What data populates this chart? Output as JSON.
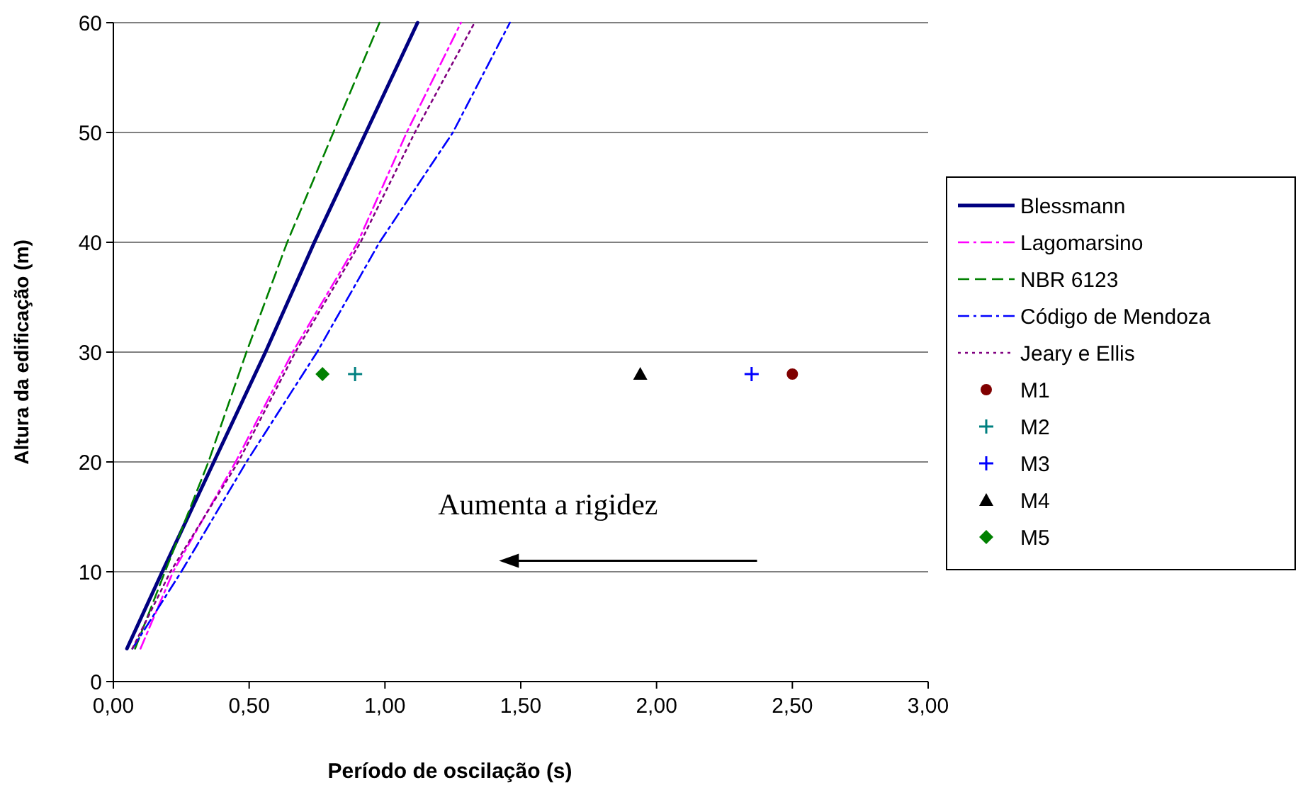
{
  "chart_data": {
    "type": "line",
    "xlabel": "Período de oscilação (s)",
    "ylabel": "Altura da edificação (m)",
    "xlim": [
      0,
      3
    ],
    "xticks": [
      {
        "value": 0,
        "label": "0,00"
      },
      {
        "value": 0.5,
        "label": "0,50"
      },
      {
        "value": 1,
        "label": "1,00"
      },
      {
        "value": 1.5,
        "label": "1,50"
      },
      {
        "value": 2,
        "label": "2,00"
      },
      {
        "value": 2.5,
        "label": "2,50"
      },
      {
        "value": 3,
        "label": "3,00"
      }
    ],
    "ylim": [
      0,
      60
    ],
    "yticks": [
      0,
      10,
      20,
      30,
      40,
      50,
      60
    ],
    "grid": "y",
    "legend": "right",
    "annotations": [
      "Aumenta a rigidez"
    ],
    "series": [
      {
        "name": "Blessmann",
        "color": "#000080",
        "line_style": "solid",
        "x": [
          0.05,
          0.18,
          0.37,
          0.56,
          0.74,
          0.93,
          1.12
        ],
        "values": [
          3,
          10,
          20,
          30,
          40,
          50,
          60
        ]
      },
      {
        "name": "Lagomarsino",
        "color": "#ff00ff",
        "line_style": "dashdot",
        "x": [
          0.1,
          0.22,
          0.45,
          0.66,
          0.9,
          1.08,
          1.28
        ],
        "values": [
          3,
          10,
          20,
          30,
          40,
          50,
          60
        ]
      },
      {
        "name": "NBR 6123",
        "color": "#008000",
        "line_style": "dashed",
        "x": [
          0.08,
          0.19,
          0.35,
          0.49,
          0.64,
          0.81,
          0.98
        ],
        "values": [
          3,
          10,
          20,
          30,
          40,
          50,
          60
        ]
      },
      {
        "name": "Código de Mendoza",
        "color": "#0000ff",
        "line_style": "dashdot",
        "x": [
          0.07,
          0.25,
          0.49,
          0.75,
          0.98,
          1.25,
          1.46
        ],
        "values": [
          3,
          10,
          20,
          30,
          40,
          50,
          60
        ]
      },
      {
        "name": "Jeary e Ellis",
        "color": "#800080",
        "line_style": "dotted",
        "x": [
          0.07,
          0.21,
          0.46,
          0.67,
          0.91,
          1.11,
          1.33
        ],
        "values": [
          3,
          10,
          20,
          30,
          40,
          50,
          60
        ]
      },
      {
        "name": "M1",
        "type": "scatter",
        "color": "#800000",
        "marker": "circle",
        "x": [
          2.5
        ],
        "values": [
          28
        ]
      },
      {
        "name": "M2",
        "type": "scatter",
        "color": "#008080",
        "marker": "cross",
        "x": [
          0.89
        ],
        "values": [
          28
        ]
      },
      {
        "name": "M3",
        "type": "scatter",
        "color": "#0000ff",
        "marker": "cross",
        "x": [
          2.35
        ],
        "values": [
          28
        ]
      },
      {
        "name": "M4",
        "type": "scatter",
        "color": "#000000",
        "marker": "triangle",
        "x": [
          1.94
        ],
        "values": [
          28
        ]
      },
      {
        "name": "M5",
        "type": "scatter",
        "color": "#008000",
        "marker": "diamond",
        "x": [
          0.77
        ],
        "values": [
          28
        ]
      }
    ]
  }
}
